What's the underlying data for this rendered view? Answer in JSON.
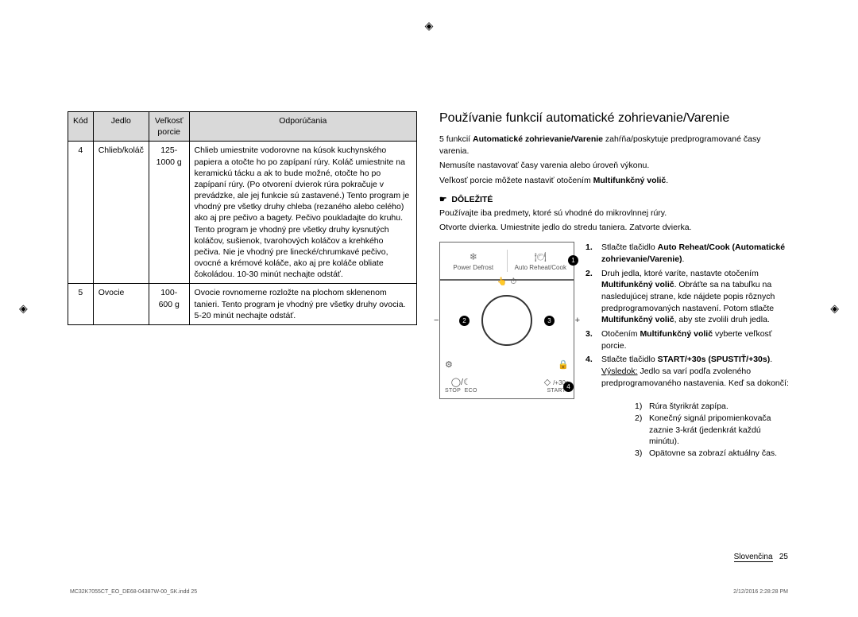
{
  "table": {
    "headers": [
      "Kód",
      "Jedlo",
      "Veľkosť porcie",
      "Odporúčania"
    ],
    "rows": [
      {
        "code": "4",
        "food": "Chlieb/koláč",
        "portion": "125-1000 g",
        "rec": "Chlieb umiestnite vodorovne na kúsok kuchynského papiera a otočte ho po zapípaní rúry. Koláč umiestnite na keramickú tácku a ak to bude možné, otočte ho po zapípaní rúry. (Po otvorení dvierok rúra pokračuje v prevádzke, ale jej funkcie sú zastavené.) Tento program je vhodný pre všetky druhy chleba (rezaného alebo celého) ako aj pre pečivo a bagety. Pečivo poukladajte do kruhu. Tento program je vhodný pre všetky druhy kysnutých koláčov, sušienok, tvarohových koláčov a krehkého pečiva. Nie je vhodný pre linecké/chrumkavé pečivo, ovocné a krémové koláče, ako aj pre koláče obliate čokoládou. 10-30 minút nechajte odstáť."
      },
      {
        "code": "5",
        "food": "Ovocie",
        "portion": "100-600 g",
        "rec": "Ovocie rovnomerne rozložte na plochom sklenenom tanieri. Tento program je vhodný pre všetky druhy ovocia. 5-20 minút nechajte odstáť."
      }
    ]
  },
  "right": {
    "title": "Používanie funkcií automatické zohrievanie/Varenie",
    "p1a": "5 funkcií ",
    "p1b": "Automatické zohrievanie/Varenie",
    "p1c": " zahŕňa/poskytuje predprogramované časy varenia.",
    "p2": "Nemusíte nastavovať časy varenia alebo úroveň výkonu.",
    "p3a": "Veľkosť porcie môžete nastaviť otočením ",
    "p3b": "Multifunkčný volič",
    "p3c": ".",
    "important": "DÔLEŽITÉ",
    "p4": "Používajte iba predmety, ktoré sú vhodné do mikrovlnnej rúry.",
    "p5": "Otvorte dvierka. Umiestnite jedlo do stredu taniera. Zatvorte dvierka.",
    "panel": {
      "power_defrost": "Power Defrost",
      "auto_reheat": "Auto Reheat/Cook",
      "stop": "STOP",
      "eco": "ECO",
      "start": "START",
      "plus30": "/+30s"
    },
    "steps": [
      {
        "n": "1.",
        "html": "Stlačte tlačidlo <b>Auto Reheat/Cook (Automatické zohrievanie/Varenie)</b>."
      },
      {
        "n": "2.",
        "html": "Druh jedla, ktoré varíte, nastavte otočením <b>Multifunkčný volič</b>. Obráťte sa na tabuľku na nasledujúcej strane, kde nájdete popis rôznych predprogramovaných nastavení. Potom stlačte <b>Multifunkčný volič</b>, aby ste zvolili druh jedla."
      },
      {
        "n": "3.",
        "html": "Otočením <b>Multifunkčný volič</b> vyberte veľkosť porcie."
      },
      {
        "n": "4.",
        "html": "Stlačte tlačidlo <b>START/+30s (SPUSTIŤ/+30s)</b>.<br><u>Výsledok:</u>  Jedlo sa varí podľa zvoleného predprogramovaného nastavenia. Keď sa dokončí:"
      }
    ],
    "result_sub": [
      {
        "k": "1)",
        "t": "Rúra štyrikrát zapípa."
      },
      {
        "k": "2)",
        "t": "Konečný signál pripomienkovača zaznie 3-krát (jedenkrát každú minútu)."
      },
      {
        "k": "3)",
        "t": "Opätovne sa zobrazí aktuálny čas."
      }
    ]
  },
  "footer": {
    "lang": "Slovenčina",
    "page": "25",
    "doc_id": "MC32K7055CT_EO_DE68-04387W-00_SK.indd   25",
    "timestamp": "2/12/2016   2:28:28 PM"
  }
}
